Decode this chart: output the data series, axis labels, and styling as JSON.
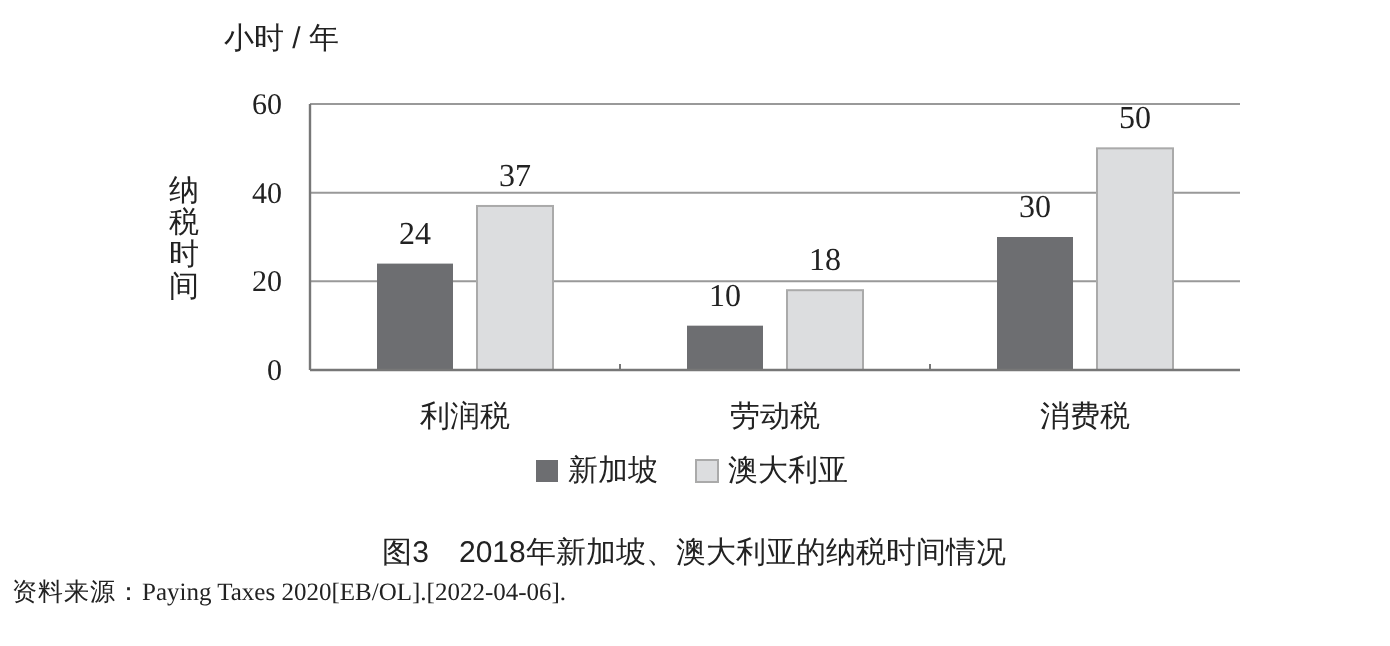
{
  "chart_data": {
    "type": "bar",
    "title": "图3　2018年新加坡、澳大利亚的纳税时间情况",
    "ylabel": "纳税时间",
    "categories": [
      "利润税",
      "劳动税",
      "消费税"
    ],
    "series": [
      {
        "name": "新加坡",
        "color": "#6d6e71",
        "values": [
          24,
          10,
          30
        ]
      },
      {
        "name": "澳大利亚",
        "color": "#dcdddf",
        "values": [
          37,
          18,
          50
        ]
      }
    ],
    "ylim": [
      0,
      60
    ],
    "yticks": [
      0,
      20,
      40,
      60
    ],
    "grid": "y",
    "legend": "bottom",
    "data_labels": true,
    "annotations": [
      "小时 / 年",
      "资料来源：Paying Taxes 2020[EB/OL].[2022-04-06]."
    ]
  }
}
